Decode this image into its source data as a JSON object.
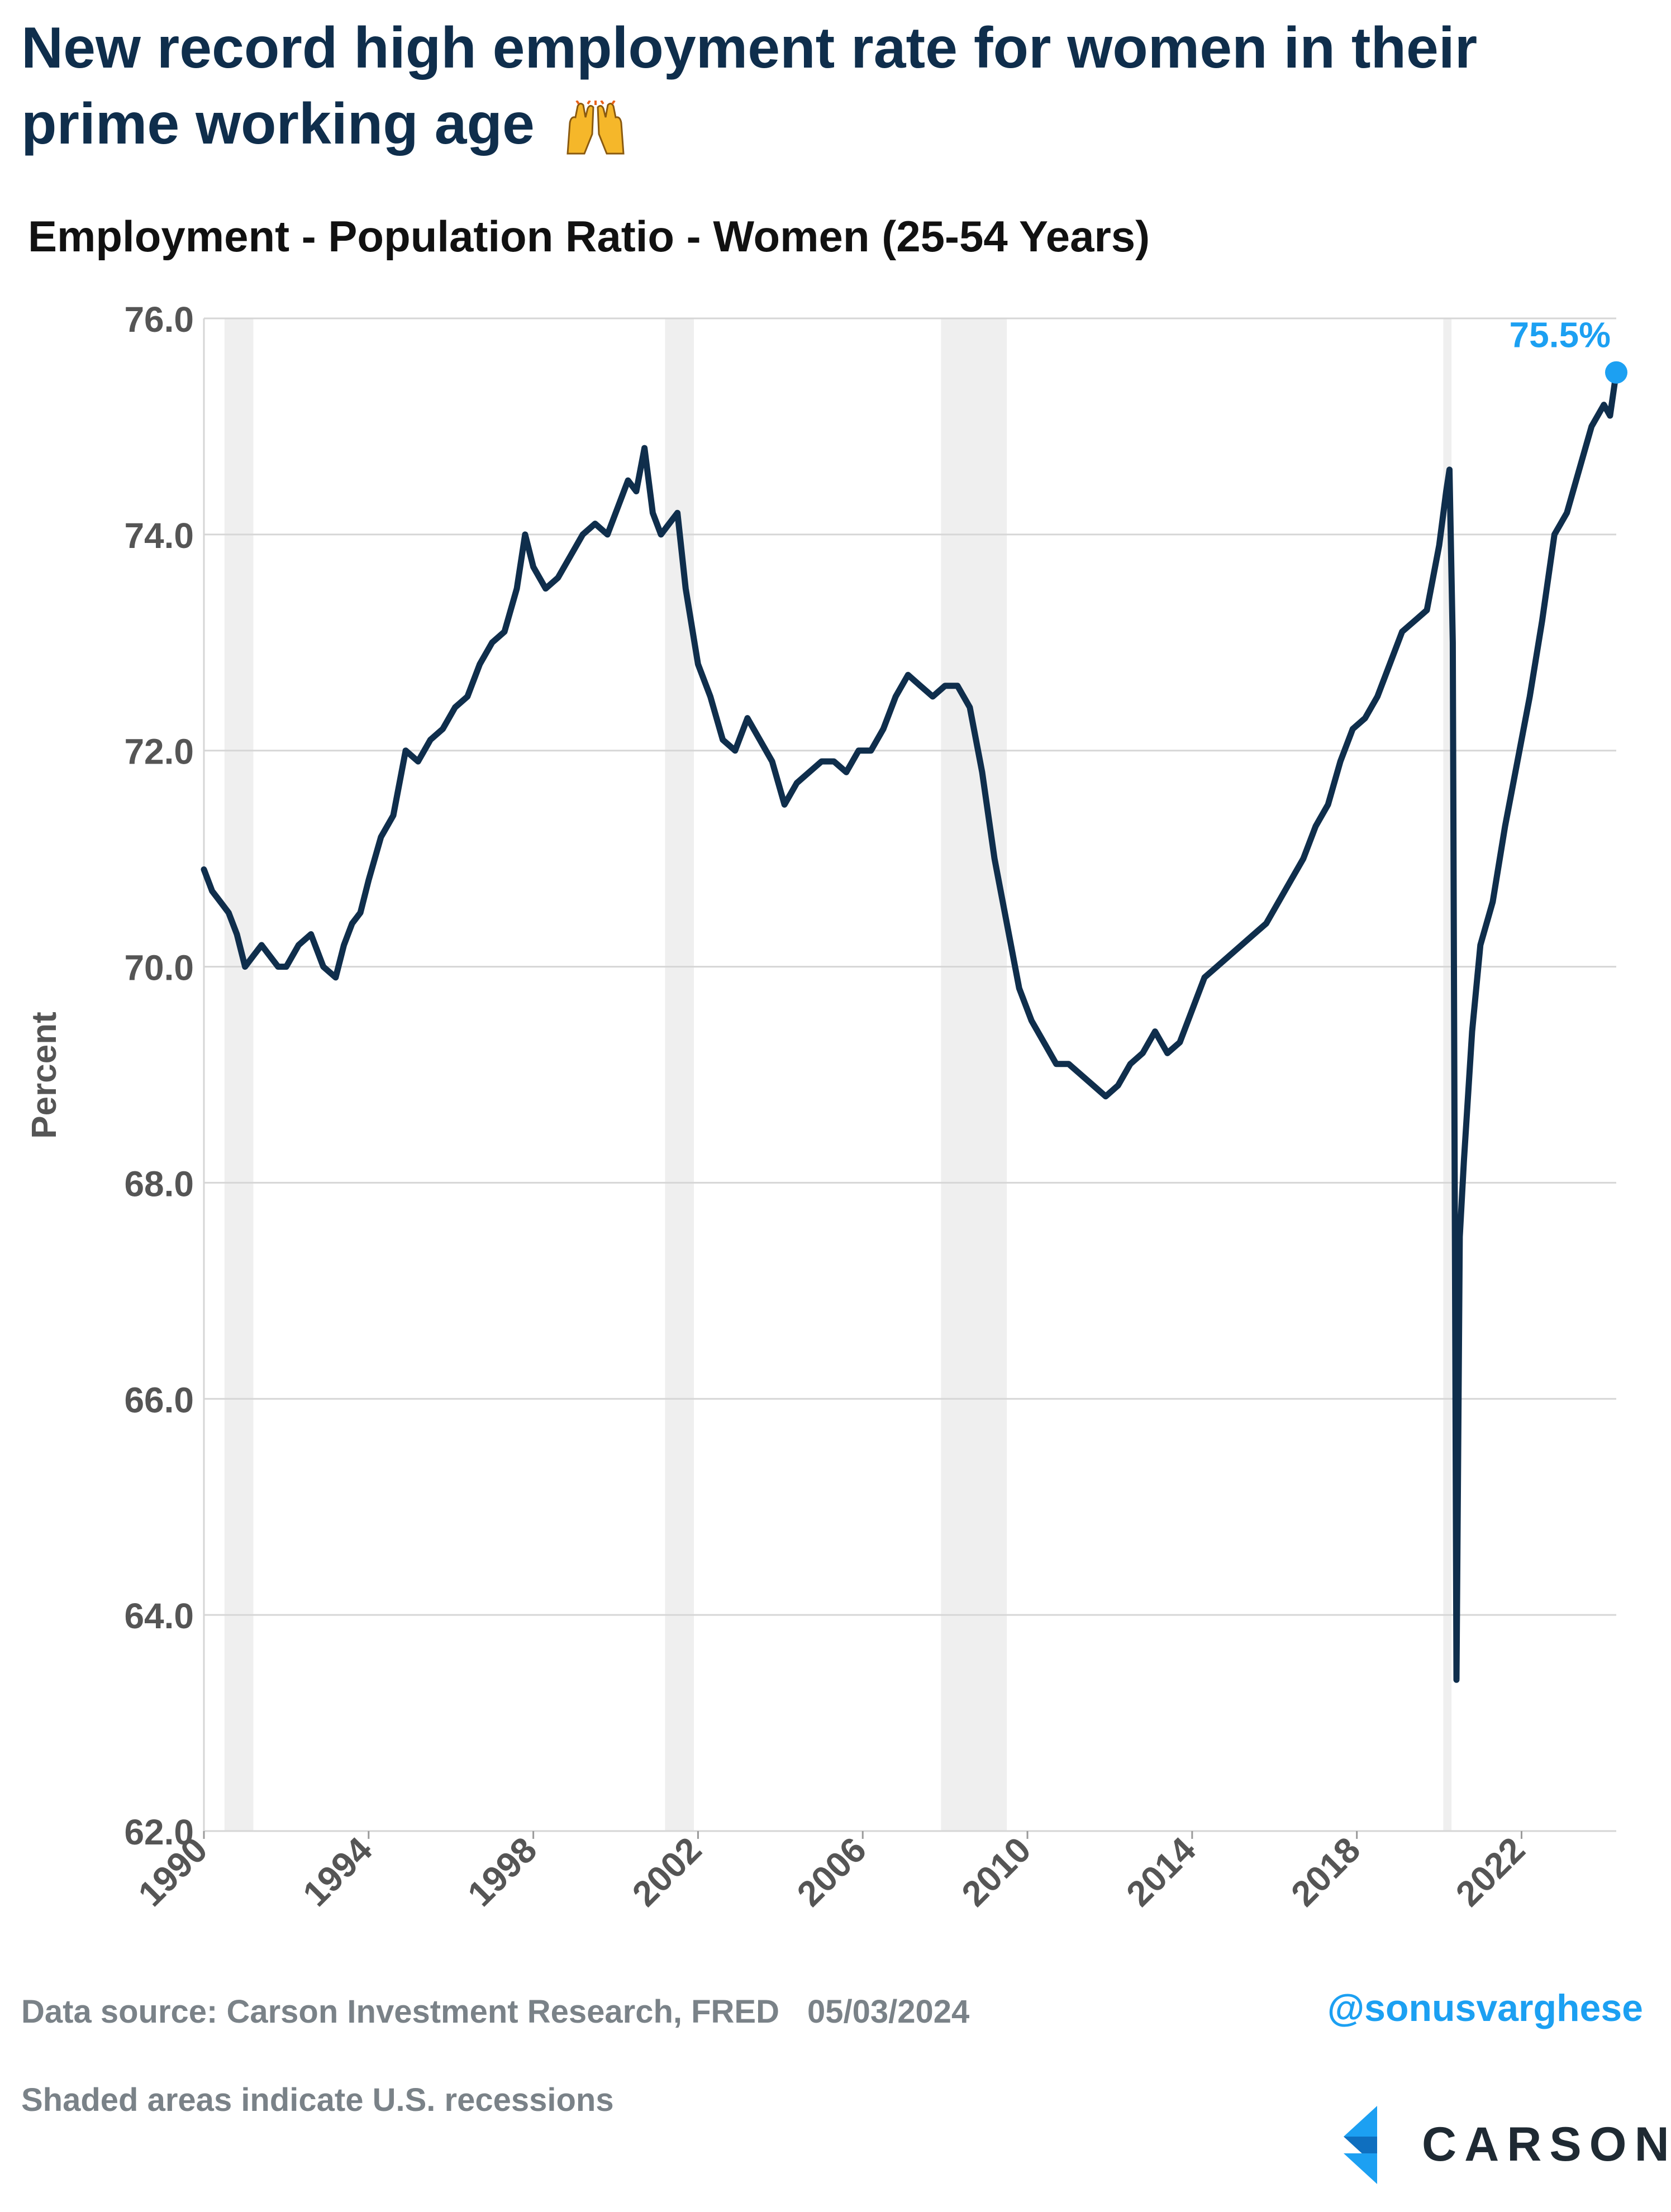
{
  "header": {
    "title_line1": "New record high employment rate for women in their",
    "title_line2": "prime working age",
    "emoji_icon": "raising-hands-icon"
  },
  "chart_data": {
    "type": "line",
    "title": "Employment - Population Ratio - Women (25-54 Years)",
    "ylabel": "Percent",
    "xlabel": "",
    "xlim": [
      1990.0,
      2024.3
    ],
    "ylim": [
      62.0,
      76.0
    ],
    "y_ticks": [
      "62.0",
      "64.0",
      "66.0",
      "68.0",
      "70.0",
      "72.0",
      "74.0",
      "76.0"
    ],
    "x_ticks": [
      "1990",
      "1994",
      "1998",
      "2002",
      "2006",
      "2010",
      "2014",
      "2018",
      "2022"
    ],
    "grid": "horizontal",
    "line_color": "#0f2e4c",
    "recessions": [
      [
        1990.5,
        1991.2
      ],
      [
        2001.2,
        2001.9
      ],
      [
        2007.9,
        2009.5
      ],
      [
        2020.1,
        2020.3
      ]
    ],
    "series": [
      {
        "x": [
          1990.0,
          1990.2,
          1990.4,
          1990.6,
          1990.8,
          1991.0,
          1991.2,
          1991.4,
          1991.6,
          1991.8,
          1992.0,
          1992.3,
          1992.6,
          1992.9,
          1993.2,
          1993.4,
          1993.6,
          1993.8,
          1994.0,
          1994.3,
          1994.6,
          1994.9,
          1995.2,
          1995.5,
          1995.8,
          1996.1,
          1996.4,
          1996.7,
          1997.0,
          1997.3,
          1997.6,
          1997.8,
          1998.0,
          1998.3,
          1998.6,
          1998.9,
          1999.2,
          1999.5,
          1999.8,
          2000.1,
          2000.3,
          2000.5,
          2000.7,
          2000.9,
          2001.1,
          2001.3,
          2001.5,
          2001.7,
          2002.0,
          2002.3,
          2002.6,
          2002.9,
          2003.2,
          2003.5,
          2003.8,
          2004.1,
          2004.4,
          2004.7,
          2005.0,
          2005.3,
          2005.6,
          2005.9,
          2006.2,
          2006.5,
          2006.8,
          2007.1,
          2007.4,
          2007.7,
          2008.0,
          2008.3,
          2008.6,
          2008.9,
          2009.2,
          2009.5,
          2009.8,
          2010.1,
          2010.4,
          2010.7,
          2011.0,
          2011.3,
          2011.6,
          2011.9,
          2012.2,
          2012.5,
          2012.8,
          2013.1,
          2013.4,
          2013.7,
          2014.0,
          2014.3,
          2014.6,
          2014.9,
          2015.2,
          2015.5,
          2015.8,
          2016.1,
          2016.4,
          2016.7,
          2017.0,
          2017.3,
          2017.6,
          2017.9,
          2018.2,
          2018.5,
          2018.8,
          2019.1,
          2019.4,
          2019.7,
          2020.0,
          2020.17,
          2020.25,
          2020.33,
          2020.42,
          2020.5,
          2020.6,
          2020.8,
          2021.0,
          2021.3,
          2021.6,
          2021.9,
          2022.2,
          2022.5,
          2022.8,
          2023.1,
          2023.4,
          2023.7,
          2024.0,
          2024.15,
          2024.3
        ],
        "y": [
          70.9,
          70.7,
          70.6,
          70.5,
          70.3,
          70.0,
          70.1,
          70.2,
          70.1,
          70.0,
          70.0,
          70.2,
          70.3,
          70.0,
          69.9,
          70.2,
          70.4,
          70.5,
          70.8,
          71.2,
          71.4,
          72.0,
          71.9,
          72.1,
          72.2,
          72.4,
          72.5,
          72.8,
          73.0,
          73.1,
          73.5,
          74.0,
          73.7,
          73.5,
          73.6,
          73.8,
          74.0,
          74.1,
          74.0,
          74.3,
          74.5,
          74.4,
          74.8,
          74.2,
          74.0,
          74.1,
          74.2,
          73.5,
          72.8,
          72.5,
          72.1,
          72.0,
          72.3,
          72.1,
          71.9,
          71.5,
          71.7,
          71.8,
          71.9,
          71.9,
          71.8,
          72.0,
          72.0,
          72.2,
          72.5,
          72.7,
          72.6,
          72.5,
          72.6,
          72.6,
          72.4,
          71.8,
          71.0,
          70.4,
          69.8,
          69.5,
          69.3,
          69.1,
          69.1,
          69.0,
          68.9,
          68.8,
          68.9,
          69.1,
          69.2,
          69.4,
          69.2,
          69.3,
          69.6,
          69.9,
          70.0,
          70.1,
          70.2,
          70.3,
          70.4,
          70.6,
          70.8,
          71.0,
          71.3,
          71.5,
          71.9,
          72.2,
          72.3,
          72.5,
          72.8,
          73.1,
          73.2,
          73.3,
          73.9,
          74.4,
          74.6,
          73.0,
          63.4,
          67.5,
          68.2,
          69.4,
          70.2,
          70.6,
          71.3,
          71.9,
          72.5,
          73.2,
          74.0,
          74.2,
          74.6,
          75.0,
          75.2,
          75.1,
          75.5
        ]
      }
    ],
    "annotation": {
      "label": "75.5%",
      "x": 2024.3,
      "y": 75.5,
      "color": "#1ca0f2"
    }
  },
  "footer": {
    "source": "Data source: Carson Investment Research, FRED",
    "date": "05/03/2024",
    "shaded_note": "Shaded areas indicate U.S. recessions",
    "handle": "@sonusvarghese",
    "handle_color": "#1ca0f2",
    "logo_icon": "carson-logo-icon",
    "logo_word": "CARSON"
  }
}
